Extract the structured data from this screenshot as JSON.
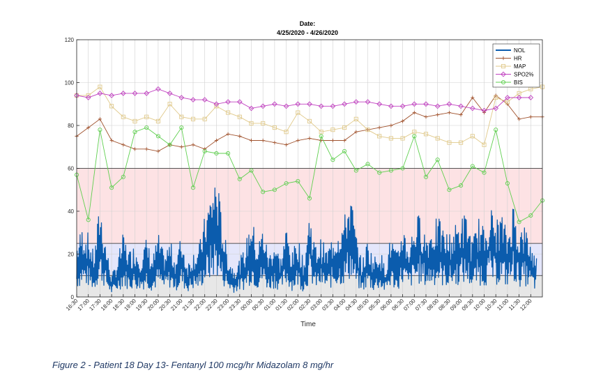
{
  "chart_data": {
    "type": "line",
    "title_line1": "Date:",
    "title_line2": "4/25/2020 - 4/26/2020",
    "xlabel": "Time",
    "ylabel": "",
    "ylim": [
      0,
      120
    ],
    "yticks": [
      0,
      20,
      40,
      60,
      80,
      100,
      120
    ],
    "xlim": [
      "16:30",
      "12:30"
    ],
    "xticks": [
      "16:30",
      "17:00",
      "17:30",
      "18:00",
      "18:30",
      "19:00",
      "19:30",
      "20:00",
      "20:30",
      "21:00",
      "21:30",
      "22:00",
      "22:30",
      "23:00",
      "23:30",
      "00:00",
      "00:30",
      "01:00",
      "01:30",
      "02:00",
      "02:30",
      "03:00",
      "03:30",
      "04:00",
      "04:30",
      "05:00",
      "05:30",
      "06:00",
      "06:30",
      "07:00",
      "07:30",
      "08:00",
      "08:30",
      "09:00",
      "09:30",
      "10:00",
      "10:30",
      "11:00",
      "11:30",
      "12:00"
    ],
    "grid": true,
    "legend_position": "top-right",
    "bands": [
      {
        "from": 25,
        "to": 60,
        "color": "#fde2e4"
      },
      {
        "from": 10,
        "to": 25,
        "color": "#e4e6fb"
      },
      {
        "from": 0,
        "to": 10,
        "color": "#e7e7e7"
      }
    ],
    "hlines": [
      60,
      25,
      10
    ],
    "series": [
      {
        "name": "NOL",
        "color": "#0b5cad",
        "marker": "none",
        "x": [
          "16:30",
          "16:45",
          "17:00",
          "17:15",
          "17:30",
          "17:45",
          "18:00",
          "18:15",
          "18:30",
          "18:45",
          "19:00",
          "19:15",
          "19:30",
          "19:45",
          "20:00",
          "20:15",
          "20:30",
          "20:45",
          "21:00",
          "21:15",
          "21:30",
          "21:45",
          "22:00",
          "22:15",
          "22:30",
          "22:45",
          "23:00",
          "23:15",
          "23:30",
          "23:45",
          "00:00",
          "00:15",
          "00:30",
          "00:45",
          "01:00",
          "01:15",
          "01:30",
          "01:45",
          "02:00",
          "02:15",
          "02:30",
          "02:45",
          "03:00",
          "03:15",
          "03:30",
          "03:45",
          "04:00",
          "04:15",
          "04:30",
          "04:45",
          "05:00",
          "05:15",
          "05:30",
          "05:45",
          "06:00",
          "06:15",
          "06:30",
          "06:45",
          "07:00",
          "07:15",
          "07:30",
          "07:45",
          "08:00",
          "08:15",
          "08:30",
          "08:45",
          "09:00",
          "09:15",
          "09:30",
          "09:45",
          "10:00",
          "10:15",
          "10:30",
          "10:45",
          "11:00",
          "11:15",
          "11:30",
          "11:45",
          "12:00",
          "12:15"
        ],
        "y": [
          26,
          34,
          30,
          20,
          46,
          26,
          10,
          18,
          30,
          22,
          25,
          20,
          28,
          18,
          30,
          20,
          27,
          18,
          30,
          16,
          22,
          24,
          38,
          50,
          60,
          36,
          20,
          14,
          18,
          24,
          40,
          24,
          34,
          20,
          28,
          18,
          34,
          20,
          30,
          16,
          42,
          24,
          28,
          22,
          30,
          34,
          38,
          52,
          30,
          16,
          28,
          18,
          24,
          14,
          30,
          20,
          36,
          24,
          36,
          40,
          30,
          34,
          38,
          32,
          30,
          34,
          38,
          40,
          26,
          38,
          32,
          44,
          36,
          40,
          30,
          46,
          32,
          34,
          26,
          18
        ]
      },
      {
        "name": "HR",
        "color": "#a0522d",
        "marker": "plus",
        "x": [
          "16:30",
          "17:00",
          "17:30",
          "18:00",
          "18:30",
          "19:00",
          "19:30",
          "20:00",
          "20:30",
          "21:00",
          "21:30",
          "22:00",
          "22:30",
          "23:00",
          "23:30",
          "00:00",
          "00:30",
          "01:00",
          "01:30",
          "02:00",
          "02:30",
          "03:00",
          "03:30",
          "04:00",
          "04:30",
          "05:00",
          "05:30",
          "06:00",
          "06:30",
          "07:00",
          "07:30",
          "08:00",
          "08:30",
          "09:00",
          "09:30",
          "10:00",
          "10:30",
          "11:00",
          "11:30",
          "12:00",
          "12:30"
        ],
        "y": [
          75,
          79,
          83,
          73,
          71,
          69,
          69,
          68,
          71,
          70,
          71,
          69,
          73,
          76,
          75,
          73,
          73,
          72,
          71,
          73,
          74,
          73,
          73,
          73,
          77,
          78,
          79,
          80,
          82,
          86,
          84,
          85,
          86,
          85,
          93,
          86,
          94,
          90,
          83,
          84,
          84
        ]
      },
      {
        "name": "MAP",
        "color": "#e0c98a",
        "marker": "square",
        "x": [
          "16:30",
          "17:00",
          "17:30",
          "18:00",
          "18:30",
          "19:00",
          "19:30",
          "20:00",
          "20:30",
          "21:00",
          "21:30",
          "22:00",
          "22:30",
          "23:00",
          "23:30",
          "00:00",
          "00:30",
          "01:00",
          "01:30",
          "02:00",
          "02:30",
          "03:00",
          "03:30",
          "04:00",
          "04:30",
          "05:00",
          "05:30",
          "06:00",
          "06:30",
          "07:00",
          "07:30",
          "08:00",
          "08:30",
          "09:00",
          "09:30",
          "10:00",
          "10:30",
          "11:00",
          "11:30",
          "12:00",
          "12:30"
        ],
        "y": [
          94,
          94,
          98,
          89,
          84,
          82,
          84,
          82,
          90,
          84,
          83,
          83,
          89,
          86,
          84,
          81,
          81,
          79,
          77,
          86,
          82,
          77,
          78,
          79,
          83,
          78,
          75,
          74,
          74,
          77,
          76,
          74,
          72,
          72,
          75,
          71,
          93,
          91,
          95,
          97,
          98
        ]
      },
      {
        "name": "SPO2%",
        "color": "#c040c0",
        "marker": "diamond",
        "x": [
          "16:30",
          "17:00",
          "17:30",
          "18:00",
          "18:30",
          "19:00",
          "19:30",
          "20:00",
          "20:30",
          "21:00",
          "21:30",
          "22:00",
          "22:30",
          "23:00",
          "23:30",
          "00:00",
          "00:30",
          "01:00",
          "01:30",
          "02:00",
          "02:30",
          "03:00",
          "03:30",
          "04:00",
          "04:30",
          "05:00",
          "05:30",
          "06:00",
          "06:30",
          "07:00",
          "07:30",
          "08:00",
          "08:30",
          "09:00",
          "09:30",
          "10:00",
          "10:30",
          "11:00",
          "11:30",
          "12:00"
        ],
        "y": [
          94,
          93,
          95,
          94,
          95,
          95,
          95,
          97,
          95,
          93,
          92,
          92,
          90,
          91,
          91,
          88,
          89,
          90,
          89,
          90,
          90,
          89,
          89,
          90,
          91,
          91,
          90,
          89,
          89,
          90,
          90,
          89,
          90,
          89,
          88,
          87,
          88,
          93,
          93,
          93
        ]
      },
      {
        "name": "BIS",
        "color": "#5fcf4f",
        "marker": "circle",
        "x": [
          "16:30",
          "17:00",
          "17:30",
          "18:00",
          "18:30",
          "19:00",
          "19:30",
          "20:00",
          "20:30",
          "21:00",
          "21:30",
          "22:00",
          "22:30",
          "23:00",
          "23:30",
          "00:00",
          "00:30",
          "01:00",
          "01:30",
          "02:00",
          "02:30",
          "03:00",
          "03:30",
          "04:00",
          "04:30",
          "05:00",
          "05:30",
          "06:00",
          "06:30",
          "07:00",
          "07:30",
          "08:00",
          "08:30",
          "09:00",
          "09:30",
          "10:00",
          "10:30",
          "11:00",
          "11:30",
          "12:00",
          "12:30"
        ],
        "y": [
          57,
          36,
          78,
          51,
          56,
          77,
          79,
          75,
          71,
          79,
          51,
          68,
          67,
          67,
          55,
          59,
          49,
          50,
          53,
          54,
          46,
          75,
          64,
          68,
          59,
          62,
          58,
          59,
          60,
          75,
          56,
          64,
          50,
          52,
          61,
          58,
          78,
          53,
          35,
          38,
          45
        ]
      }
    ]
  },
  "caption": {
    "text": "Figure 2 - Patient 18 Day 13- Fentanyl 100 mcg/hr Midazolam 8 mg/hr"
  }
}
